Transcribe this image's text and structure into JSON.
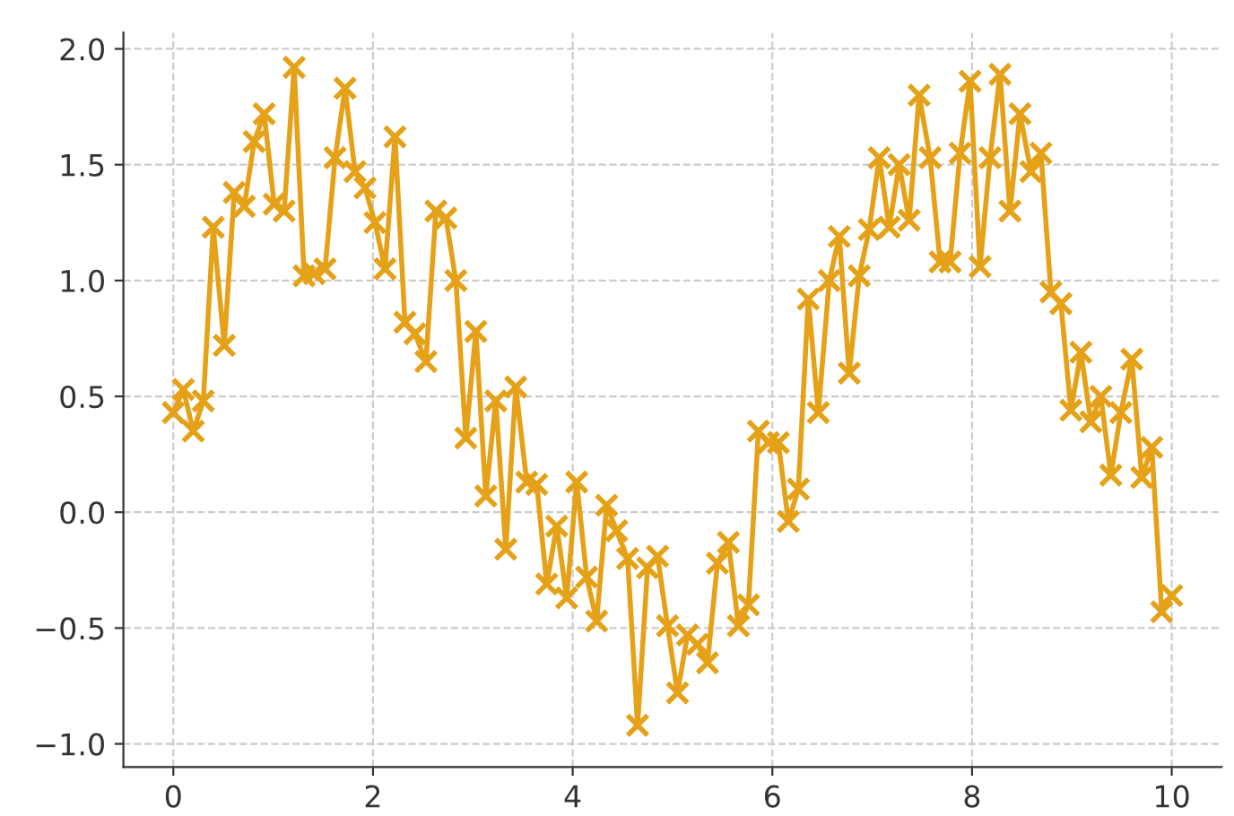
{
  "chart_data": {
    "type": "line",
    "x": [
      0,
      0.1,
      0.2,
      0.3,
      0.4,
      0.51,
      0.61,
      0.71,
      0.81,
      0.91,
      1.01,
      1.11,
      1.21,
      1.31,
      1.41,
      1.52,
      1.62,
      1.72,
      1.82,
      1.92,
      2.02,
      2.12,
      2.22,
      2.32,
      2.42,
      2.53,
      2.63,
      2.73,
      2.83,
      2.93,
      3.03,
      3.13,
      3.23,
      3.33,
      3.43,
      3.54,
      3.64,
      3.74,
      3.84,
      3.94,
      4.04,
      4.14,
      4.24,
      4.34,
      4.44,
      4.55,
      4.65,
      4.75,
      4.85,
      4.95,
      5.05,
      5.15,
      5.25,
      5.35,
      5.45,
      5.56,
      5.66,
      5.76,
      5.86,
      5.96,
      6.06,
      6.16,
      6.26,
      6.36,
      6.46,
      6.57,
      6.67,
      6.77,
      6.87,
      6.97,
      7.07,
      7.17,
      7.27,
      7.37,
      7.47,
      7.58,
      7.68,
      7.78,
      7.88,
      7.98,
      8.08,
      8.18,
      8.28,
      8.38,
      8.48,
      8.59,
      8.69,
      8.79,
      8.89,
      8.99,
      9.09,
      9.19,
      9.29,
      9.39,
      9.49,
      9.6,
      9.7,
      9.8,
      9.9,
      10
    ],
    "series": [
      {
        "color": "#e5a117",
        "values": [
          0.43,
          0.53,
          0.35,
          0.48,
          1.23,
          0.72,
          1.38,
          1.32,
          1.6,
          1.72,
          1.33,
          1.3,
          1.92,
          1.02,
          1.03,
          1.05,
          1.53,
          1.83,
          1.47,
          1.4,
          1.25,
          1.05,
          1.62,
          0.82,
          0.77,
          0.65,
          1.3,
          1.27,
          1.0,
          0.32,
          0.78,
          0.07,
          0.48,
          -0.16,
          0.54,
          0.13,
          0.12,
          -0.31,
          -0.06,
          -0.37,
          0.13,
          -0.28,
          -0.47,
          0.03,
          -0.08,
          -0.2,
          -0.92,
          -0.24,
          -0.19,
          -0.49,
          -0.78,
          -0.53,
          -0.57,
          -0.65,
          -0.22,
          -0.13,
          -0.49,
          -0.4,
          0.35,
          0.3,
          0.3,
          -0.04,
          0.1,
          0.92,
          0.43,
          1.0,
          1.19,
          0.6,
          1.02,
          1.22,
          1.53,
          1.23,
          1.5,
          1.26,
          1.8,
          1.53,
          1.08,
          1.08,
          1.55,
          1.86,
          1.06,
          1.53,
          1.89,
          1.3,
          1.72,
          1.47,
          1.55,
          0.95,
          0.9,
          0.44,
          0.69,
          0.39,
          0.5,
          0.16,
          0.43,
          0.66,
          0.15,
          0.28,
          -0.43,
          -0.36
        ]
      }
    ],
    "xlim": [
      -0.5,
      10.5
    ],
    "ylim": [
      -1.1,
      2.07
    ],
    "xticks": [
      0,
      2,
      4,
      6,
      8,
      10
    ],
    "yticks": [
      {
        "value": -1.0,
        "label": "−1.0"
      },
      {
        "value": -0.5,
        "label": "−0.5"
      },
      {
        "value": 0.0,
        "label": "0.0"
      },
      {
        "value": 0.5,
        "label": "0.5"
      },
      {
        "value": 1.0,
        "label": "1.0"
      },
      {
        "value": 1.5,
        "label": "1.5"
      },
      {
        "value": 2.0,
        "label": "2.0"
      }
    ],
    "grid": true,
    "marker": "cross",
    "line_style": "solid"
  }
}
